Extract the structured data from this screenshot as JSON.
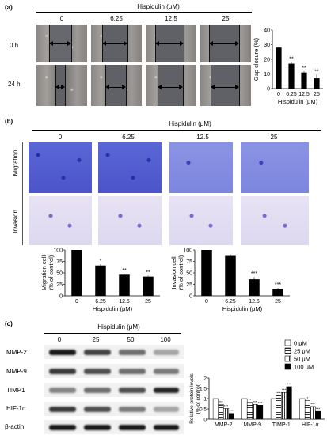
{
  "panels": {
    "a": {
      "label": "(a)"
    },
    "b": {
      "label": "(b)"
    },
    "c": {
      "label": "(c)"
    }
  },
  "treatment_header": "Hispidulin (μM)",
  "a": {
    "concentrations": [
      "0",
      "6.25",
      "12.5",
      "25"
    ],
    "rows": [
      "0 h",
      "24 h"
    ]
  },
  "b": {
    "concentrations": [
      "0",
      "6.25",
      "12.5",
      "25"
    ],
    "rows": [
      "Migration",
      "Invasion"
    ]
  },
  "c": {
    "concentrations": [
      "0",
      "25",
      "50",
      "100"
    ],
    "proteins": [
      "MMP-2",
      "MMP-9",
      "TIMP1",
      "HIF-1α",
      "β-actin"
    ]
  },
  "chart_data": [
    {
      "type": "bar",
      "panel": "a",
      "categories": [
        "0",
        "6.25",
        "12.5",
        "25"
      ],
      "values": [
        28,
        17,
        11,
        7
      ],
      "errors": [
        0.6,
        1.2,
        0.8,
        2.5
      ],
      "significance": [
        "",
        "**",
        "**",
        "**"
      ],
      "ylabel": "Gap closure (%)",
      "xlabel": "Hispidulin (μM)",
      "ylim": [
        0,
        40
      ],
      "yticks": [
        "0",
        "10",
        "20",
        "30",
        "40"
      ]
    },
    {
      "type": "bar",
      "panel": "b-migration",
      "categories": [
        "0",
        "6.25",
        "12.5",
        "25"
      ],
      "values": [
        100,
        66,
        46,
        42
      ],
      "errors": [
        0,
        3,
        2,
        2
      ],
      "significance": [
        "",
        "*",
        "**",
        "**"
      ],
      "ylabel": "Migration cell (% of control)",
      "xlabel": "Hispidulin (μM)",
      "ylim": [
        0,
        100
      ],
      "yticks": [
        "0",
        "25",
        "50",
        "75",
        "100"
      ]
    },
    {
      "type": "bar",
      "panel": "b-invasion",
      "categories": [
        "0",
        "6.25",
        "12.5",
        "25"
      ],
      "values": [
        100,
        87,
        36,
        15
      ],
      "errors": [
        0,
        3,
        5,
        2
      ],
      "significance": [
        "",
        "",
        "***",
        "***"
      ],
      "ylabel": "Invasion cell (% of control)",
      "xlabel": "Hispidulin (μM)",
      "ylim": [
        0,
        100
      ],
      "yticks": [
        "0",
        "25",
        "50",
        "75",
        "100"
      ]
    },
    {
      "type": "bar",
      "panel": "c",
      "categories": [
        "MMP-2",
        "MMP-9",
        "TIMP-1",
        "HIF-1α"
      ],
      "series": [
        {
          "name": "0  μM",
          "values": [
            1.0,
            1.0,
            1.0,
            1.0
          ],
          "color": "#ffffff",
          "pattern": "none",
          "sig": [
            "",
            "",
            "",
            ""
          ]
        },
        {
          "name": "25 μM",
          "values": [
            0.72,
            0.82,
            1.15,
            0.9
          ],
          "color": "#ffffff",
          "pattern": "hlines",
          "sig": [
            "***",
            "**",
            "***",
            "*"
          ]
        },
        {
          "name": "50 μM",
          "values": [
            0.52,
            0.72,
            1.3,
            0.62
          ],
          "color": "#ffffff",
          "pattern": "vlines",
          "sig": [
            "***",
            "***",
            "***",
            "***"
          ]
        },
        {
          "name": "100 μM",
          "values": [
            0.28,
            0.68,
            1.58,
            0.38
          ],
          "color": "#000000",
          "pattern": "solid",
          "sig": [
            "***",
            "***",
            "***",
            "***"
          ]
        }
      ],
      "ylabel": "Relative protein levels (% of control)",
      "ylim": [
        0,
        2
      ],
      "yticks": [
        "0",
        "0.5",
        "1",
        "1.5",
        "2"
      ]
    }
  ]
}
